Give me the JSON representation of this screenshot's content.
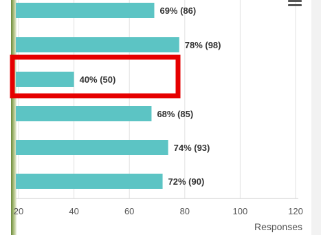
{
  "chart_data": {
    "type": "bar",
    "orientation": "horizontal",
    "categories": [
      "",
      "",
      "",
      "",
      "",
      ""
    ],
    "values": [
      69,
      78,
      40,
      68,
      74,
      72
    ],
    "counts": [
      86,
      98,
      50,
      85,
      93,
      90
    ],
    "data_labels": [
      "69% (86)",
      "78% (98)",
      "40% (50)",
      "68% (85)",
      "74% (93)",
      "72% (90)"
    ],
    "xlabel": "Responses",
    "xlim": [
      20,
      120
    ],
    "xticks": [
      "20",
      "40",
      "60",
      "80",
      "100",
      "120"
    ],
    "grid": true,
    "highlight_index": 2,
    "colors": {
      "bar": "#5cc4c4",
      "highlight": "#e60000",
      "grid": "#e2e2e2",
      "text": "#333333"
    }
  },
  "toolbar": {
    "menu_icon": "hamburger-menu-icon"
  }
}
